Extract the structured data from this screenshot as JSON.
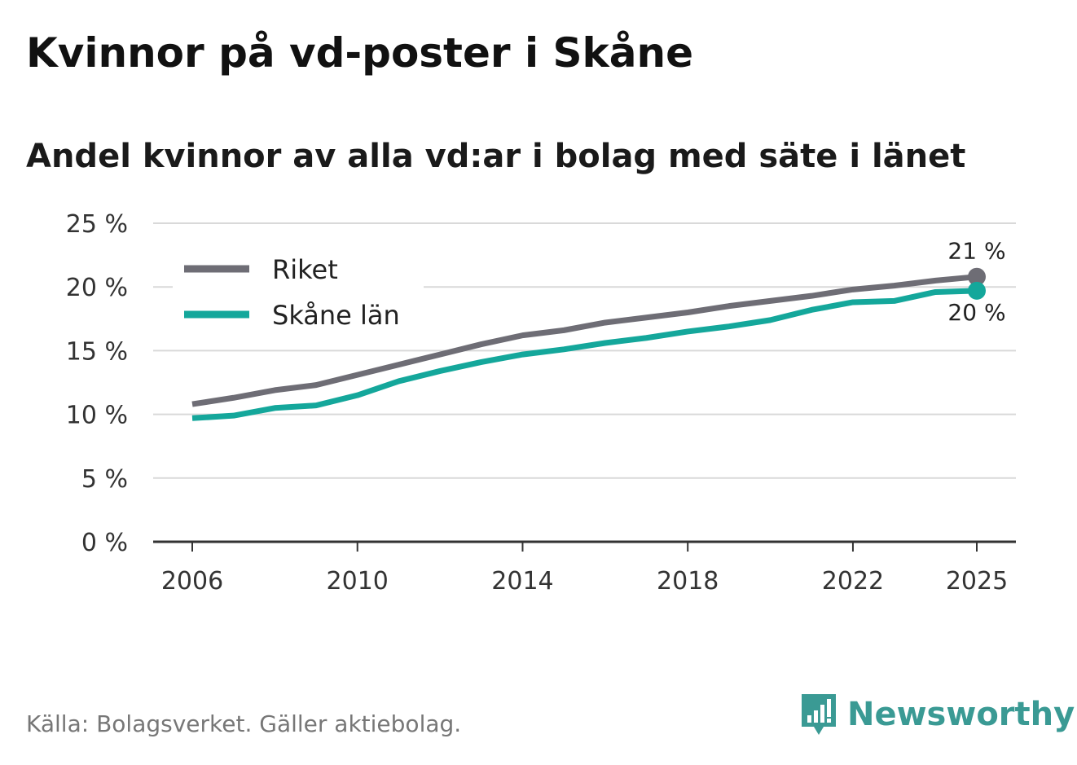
{
  "header": {
    "title": "Kvinnor på vd-poster i Skåne",
    "subtitle": "Andel kvinnor av alla vd:ar i bolag med säte i länet"
  },
  "footer": {
    "source": "Källa: Bolagsverket. Gäller aktiebolag.",
    "brand": "Newsworthy"
  },
  "chart_data": {
    "type": "line",
    "title": "Kvinnor på vd-poster i Skåne",
    "subtitle": "Andel kvinnor av alla vd:ar i bolag med säte i länet",
    "xlabel": "",
    "ylabel": "",
    "x": [
      2006,
      2007,
      2008,
      2009,
      2010,
      2011,
      2012,
      2013,
      2014,
      2015,
      2016,
      2017,
      2018,
      2019,
      2020,
      2021,
      2022,
      2023,
      2024,
      2025
    ],
    "xlim": [
      2005,
      2026
    ],
    "ylim": [
      0,
      25
    ],
    "x_ticks": [
      "2006",
      "2010",
      "2014",
      "2018",
      "2022",
      "2025"
    ],
    "x_tick_values": [
      2006,
      2010,
      2014,
      2018,
      2022,
      2025
    ],
    "y_ticks": [
      "0 %",
      "5 %",
      "10 %",
      "15 %",
      "20 %",
      "25 %"
    ],
    "y_tick_values": [
      0,
      5,
      10,
      15,
      20,
      25
    ],
    "grid": true,
    "legend_position": "top-left",
    "series": [
      {
        "name": "Riket",
        "color": "#6e6d75",
        "values": [
          10.8,
          11.3,
          11.9,
          12.3,
          13.1,
          13.9,
          14.7,
          15.5,
          16.2,
          16.6,
          17.2,
          17.6,
          18.0,
          18.5,
          18.9,
          19.3,
          19.8,
          20.1,
          20.5,
          20.8
        ],
        "end_label": "21 %"
      },
      {
        "name": "Skåne län",
        "color": "#14a79b",
        "values": [
          9.7,
          9.9,
          10.5,
          10.7,
          11.5,
          12.6,
          13.4,
          14.1,
          14.7,
          15.1,
          15.6,
          16.0,
          16.5,
          16.9,
          17.4,
          18.2,
          18.8,
          18.9,
          19.6,
          19.7
        ],
        "end_label": "20 %"
      }
    ]
  }
}
